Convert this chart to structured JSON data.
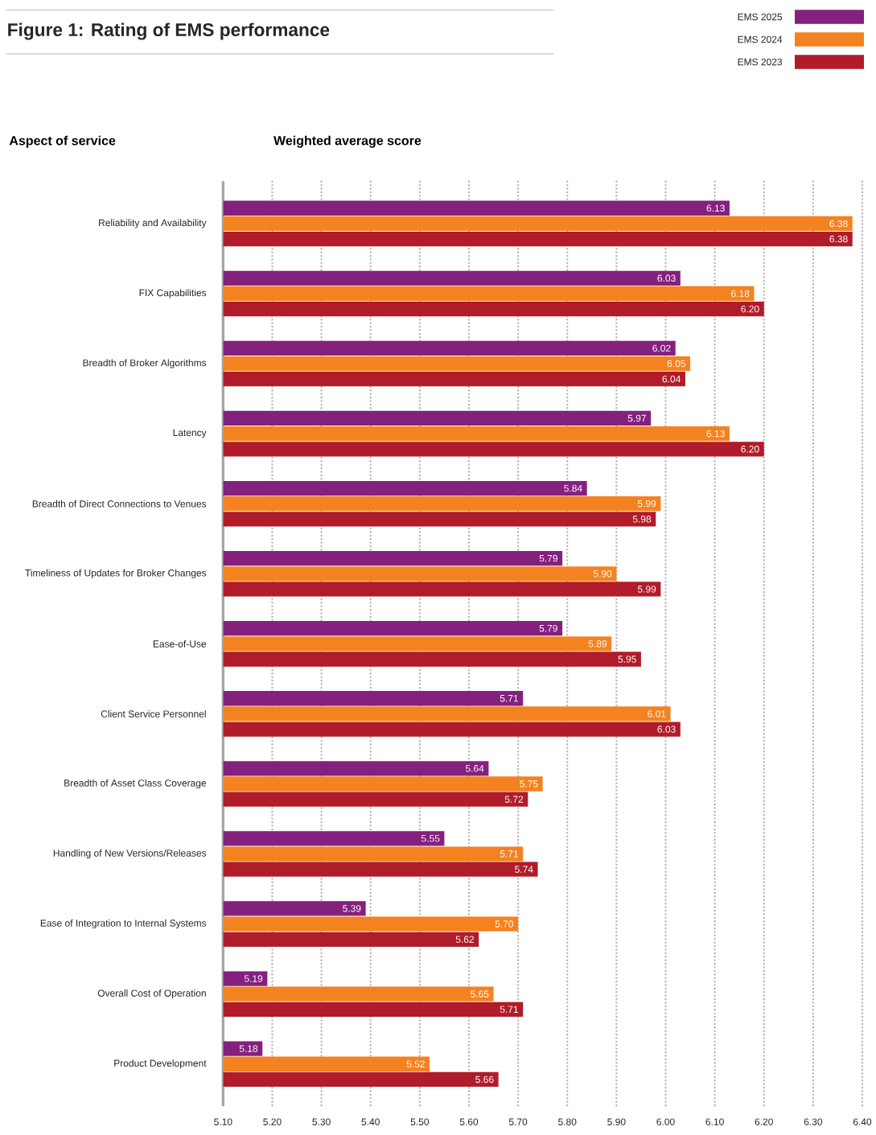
{
  "chart_data": {
    "type": "bar",
    "orientation": "horizontal",
    "title": "Figure 1: Rating of EMS performance",
    "ylabel": "Aspect of service",
    "xlabel": "Weighted average score",
    "categories": [
      "Reliability and Availability",
      "FIX Capabilities",
      "Breadth of Broker Algorithms",
      "Latency",
      "Breadth of Direct Connections to Venues",
      "Timeliness of Updates for Broker Changes",
      "Ease-of-Use",
      "Client Service Personnel",
      "Breadth of Asset Class Coverage",
      "Handling of New Versions/Releases",
      "Ease of Integration to Internal Systems",
      "Overall Cost of Operation",
      "Product Development"
    ],
    "series": [
      {
        "name": "EMS 2025",
        "color": "#84217e",
        "values": [
          6.13,
          6.03,
          6.02,
          5.97,
          5.84,
          5.79,
          5.79,
          5.71,
          5.64,
          5.55,
          5.39,
          5.19,
          5.18
        ],
        "value_labels": [
          "6.13",
          "6.03",
          "6.02",
          "5.97",
          "5.84",
          "5.79",
          "5.79",
          "5.71",
          "5.64",
          "5.55",
          "5.39",
          "5.19",
          "5.18"
        ]
      },
      {
        "name": "EMS 2024",
        "color": "#f58220",
        "values": [
          6.38,
          6.18,
          6.05,
          6.13,
          5.99,
          5.9,
          5.89,
          6.01,
          5.75,
          5.71,
          5.7,
          5.65,
          5.52
        ],
        "value_labels": [
          "6.38",
          "6.18",
          "6.05",
          "6.13",
          "5.99",
          "5.90",
          "5.89",
          "6.01",
          "5.75",
          "5.71",
          "5.70",
          "5.65",
          "5.52"
        ]
      },
      {
        "name": "EMS 2023",
        "color": "#b01c2a",
        "values": [
          6.38,
          6.2,
          6.04,
          6.2,
          5.98,
          5.99,
          5.95,
          6.03,
          5.72,
          5.74,
          5.62,
          5.71,
          5.66
        ],
        "value_labels": [
          "6.38",
          "6.20",
          "6.04",
          "6.20",
          "5.98",
          "5.99",
          "5.95",
          "6.03",
          "5.72",
          "5.74",
          "5.62",
          "5.71",
          "5.66"
        ]
      }
    ],
    "xlim": [
      5.1,
      6.4
    ],
    "xticks": [
      {
        "value": 5.1,
        "label": "5.10"
      },
      {
        "value": 5.2,
        "label": "5.20"
      },
      {
        "value": 5.3,
        "label": "5.30"
      },
      {
        "value": 5.4,
        "label": "5.40"
      },
      {
        "value": 5.5,
        "label": "5.50"
      },
      {
        "value": 5.6,
        "label": "5.60"
      },
      {
        "value": 5.7,
        "label": "5.70"
      },
      {
        "value": 5.8,
        "label": "5.80"
      },
      {
        "value": 5.9,
        "label": "5.90"
      },
      {
        "value": 6.0,
        "label": "6.00"
      },
      {
        "value": 6.1,
        "label": "6.10"
      },
      {
        "value": 6.2,
        "label": "6.20"
      },
      {
        "value": 6.3,
        "label": "6.30"
      },
      {
        "value": 6.4,
        "label": "6.40"
      }
    ],
    "grid": "x",
    "legend": "top right"
  }
}
